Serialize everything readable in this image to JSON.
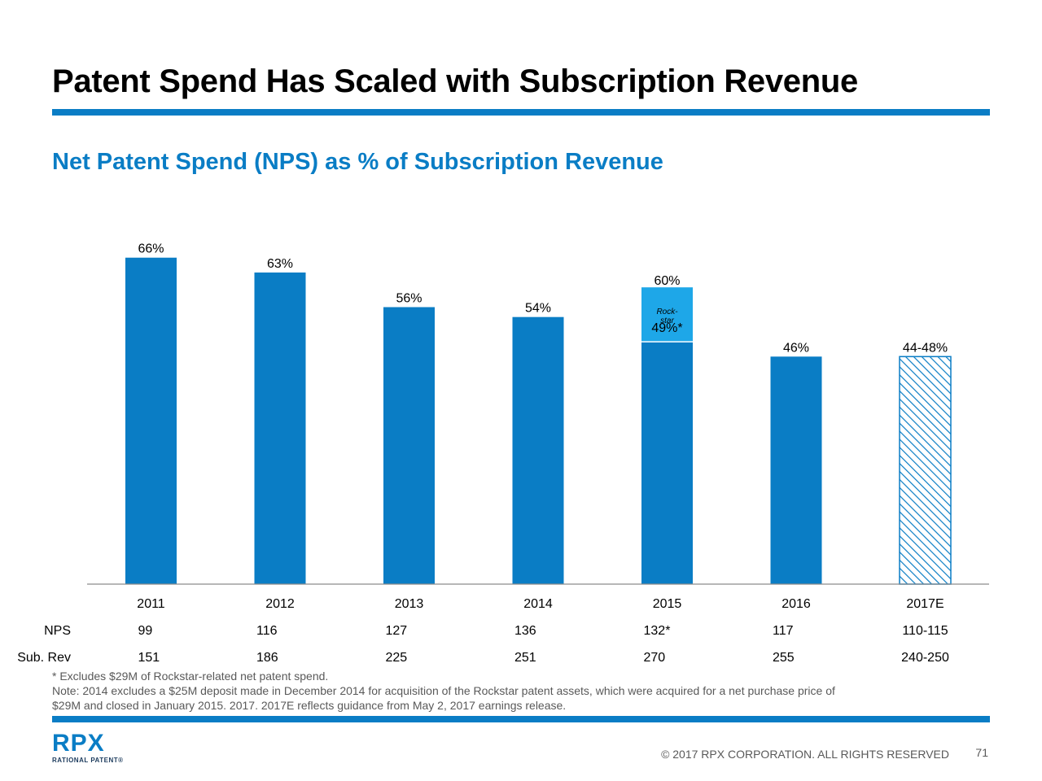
{
  "slide": {
    "title": "Patent Spend Has Scaled with Subscription Revenue",
    "subtitle": "Net Patent Spend (NPS) as % of Subscription Revenue",
    "accent_color": "#0a7dc5",
    "footnotes": [
      "* Excludes $29M of Rockstar-related net patent spend.",
      "Note: 2014 excludes a $25M deposit made in December 2014 for acquisition of the Rockstar patent assets, which were acquired for a net purchase price of",
      "$29M and closed in January 2015. 2017. 2017E reflects guidance from May 2, 2017 earnings release."
    ],
    "logo_text": "RPX",
    "logo_tagline": "RATIONAL PATENT®",
    "copyright": "© 2017 RPX CORPORATION. ALL RIGHTS RESERVED",
    "page_number": "71"
  },
  "chart_data": {
    "type": "bar",
    "categories": [
      "2011",
      "2012",
      "2013",
      "2014",
      "2015",
      "2016",
      "2017E"
    ],
    "values": [
      66,
      63,
      56,
      54,
      49,
      46,
      46
    ],
    "data_labels": [
      "66%",
      "63%",
      "56%",
      "54%",
      "49%*",
      "46%",
      "44-48%"
    ],
    "stacked_segment": {
      "category": "2015",
      "name": "Rock-star",
      "value": 11,
      "total_label": "60%",
      "color": "#1ea7e8"
    },
    "estimate_category": "2017E",
    "estimate_range": [
      44,
      48
    ],
    "ylim": [
      0,
      70
    ],
    "bar_color": "#0a7dc5",
    "table_rows": [
      {
        "label": "NPS",
        "values": [
          "99",
          "116",
          "127",
          "136",
          "132*",
          "117",
          "110-115"
        ]
      },
      {
        "label": "Sub. Rev",
        "values": [
          "151",
          "186",
          "225",
          "251",
          "270",
          "255",
          "240-250"
        ]
      }
    ]
  }
}
